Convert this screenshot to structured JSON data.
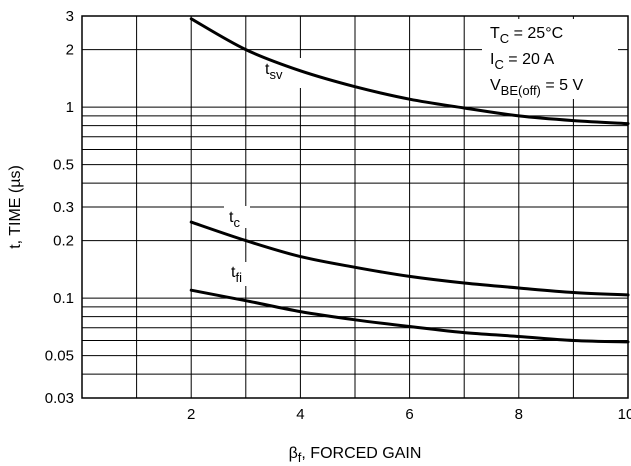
{
  "chart_data": {
    "type": "line",
    "title": "",
    "xlabel": {
      "main": "β",
      "sub": "f",
      "rest": ", FORCED GAIN"
    },
    "ylabel": "t, TIME (µs)",
    "y_scale": "log",
    "xlim": [
      0,
      10
    ],
    "ylim": [
      0.03,
      3
    ],
    "x_ticks": [
      {
        "value": 2,
        "label": "2"
      },
      {
        "value": 4,
        "label": "4"
      },
      {
        "value": 6,
        "label": "6"
      },
      {
        "value": 8,
        "label": "8"
      },
      {
        "value": 10,
        "label": "10"
      }
    ],
    "y_ticks": [
      {
        "value": 0.03,
        "label": "0.03"
      },
      {
        "value": 0.05,
        "label": "0.05"
      },
      {
        "value": 0.1,
        "label": "0.1"
      },
      {
        "value": 0.2,
        "label": "0.2"
      },
      {
        "value": 0.3,
        "label": "0.3"
      },
      {
        "value": 0.5,
        "label": "0.5"
      },
      {
        "value": 1,
        "label": "1"
      },
      {
        "value": 2,
        "label": "2"
      },
      {
        "value": 3,
        "label": "3"
      }
    ],
    "x_grid": [
      1,
      2,
      3,
      4,
      5,
      6,
      7,
      8,
      9
    ],
    "y_grid": [
      0.04,
      0.05,
      0.06,
      0.07,
      0.08,
      0.09,
      0.1,
      0.2,
      0.3,
      0.4,
      0.5,
      0.6,
      0.7,
      0.8,
      0.9,
      1,
      2
    ],
    "grid": true,
    "conditions": [
      {
        "main": "T",
        "sub": "C",
        "rest": " = 25°C"
      },
      {
        "main": "I",
        "sub": "C",
        "rest": " = 20 A"
      },
      {
        "main": "V",
        "sub": "BE(off)",
        "rest": " = 5 V"
      }
    ],
    "series": [
      {
        "key": "tsv",
        "label": {
          "main": "t",
          "sub": "sv"
        },
        "x": [
          2,
          3,
          4,
          5,
          6,
          7,
          8,
          9,
          10
        ],
        "values": [
          2.9,
          2.0,
          1.55,
          1.28,
          1.1,
          0.99,
          0.9,
          0.85,
          0.82
        ]
      },
      {
        "key": "tc",
        "label": {
          "main": "t",
          "sub": "c"
        },
        "x": [
          2,
          3,
          4,
          5,
          6,
          7,
          8,
          9,
          10
        ],
        "values": [
          0.25,
          0.2,
          0.165,
          0.145,
          0.13,
          0.12,
          0.113,
          0.107,
          0.104
        ]
      },
      {
        "key": "tfi",
        "label": {
          "main": "t",
          "sub": "fi"
        },
        "x": [
          2,
          3,
          4,
          5,
          6,
          7,
          8,
          9,
          10
        ],
        "values": [
          0.11,
          0.097,
          0.085,
          0.077,
          0.071,
          0.066,
          0.063,
          0.06,
          0.059
        ]
      }
    ]
  }
}
